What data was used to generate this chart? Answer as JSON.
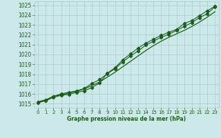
{
  "xlabel": "Graphe pression niveau de la mer (hPa)",
  "x": [
    0,
    1,
    2,
    3,
    4,
    5,
    6,
    7,
    8,
    9,
    10,
    11,
    12,
    13,
    14,
    15,
    16,
    17,
    18,
    19,
    20,
    21,
    22,
    23
  ],
  "line_smooth": [
    1015.2,
    1015.4,
    1015.75,
    1015.9,
    1016.1,
    1016.25,
    1016.5,
    1016.85,
    1017.2,
    1017.7,
    1018.2,
    1018.75,
    1019.3,
    1019.85,
    1020.4,
    1020.9,
    1021.35,
    1021.75,
    1022.1,
    1022.45,
    1022.85,
    1023.3,
    1023.8,
    1024.35
  ],
  "line_upper": [
    1015.15,
    1015.35,
    1015.75,
    1016.0,
    1016.15,
    1016.3,
    1016.55,
    1017.05,
    1017.45,
    1018.05,
    1018.55,
    1019.25,
    1019.85,
    1020.35,
    1020.95,
    1021.35,
    1021.75,
    1022.05,
    1022.45,
    1022.85,
    1023.25,
    1023.75,
    1024.15,
    1024.85
  ],
  "line_lower": [
    1015.1,
    1015.3,
    1015.65,
    1015.85,
    1015.95,
    1016.15,
    1016.3,
    1016.65,
    1017.1,
    1018.1,
    1018.65,
    1019.45,
    1020.05,
    1020.65,
    1021.15,
    1021.55,
    1021.95,
    1022.25,
    1022.55,
    1023.15,
    1023.45,
    1023.95,
    1024.45,
    1024.9
  ],
  "bg_color": "#cce8e8",
  "grid_color": "#aacccc",
  "line_color": "#1a5c1a",
  "tick_color": "#1a5c1a",
  "label_color": "#1a5c1a",
  "ylim_min": 1014.6,
  "ylim_max": 1025.4,
  "yticks": [
    1015,
    1016,
    1017,
    1018,
    1019,
    1020,
    1021,
    1022,
    1023,
    1024,
    1025
  ],
  "xticks": [
    0,
    1,
    2,
    3,
    4,
    5,
    6,
    7,
    8,
    9,
    10,
    11,
    12,
    13,
    14,
    15,
    16,
    17,
    18,
    19,
    20,
    21,
    22,
    23
  ]
}
